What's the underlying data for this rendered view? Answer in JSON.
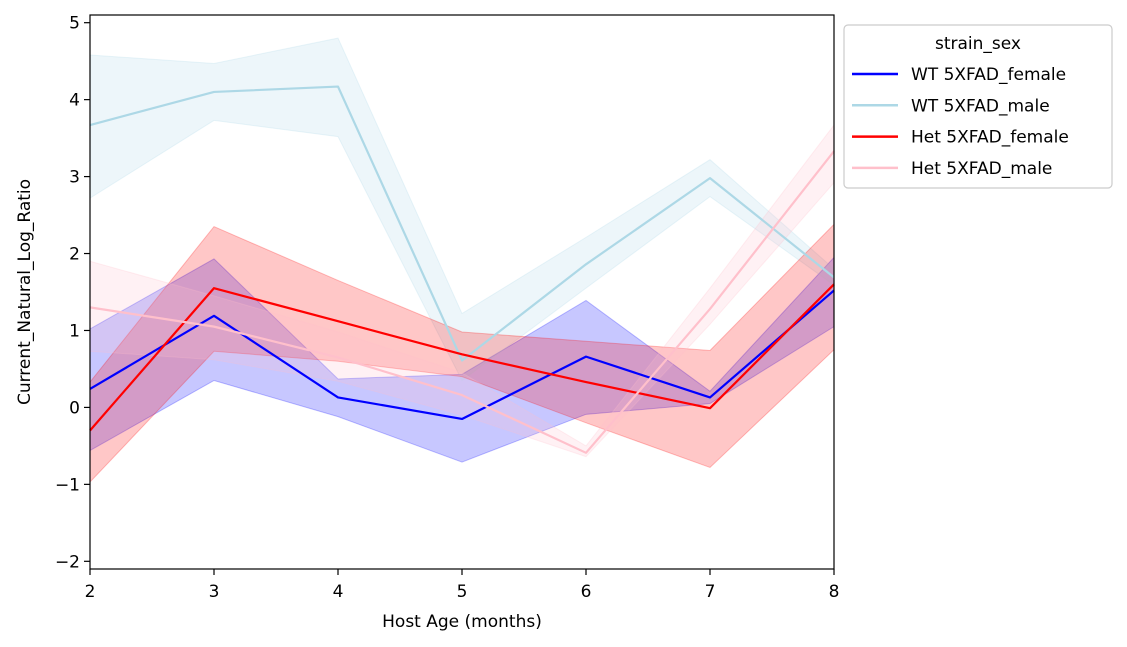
{
  "chart_data": {
    "type": "line",
    "xlabel": "Host Age (months)",
    "ylabel": "Current_Natural_Log_Ratio",
    "xlim": [
      2,
      8
    ],
    "ylim": [
      -2.1,
      5.1
    ],
    "xticks": [
      2,
      3,
      4,
      5,
      6,
      7,
      8
    ],
    "yticks": [
      -2,
      -1,
      0,
      1,
      2,
      3,
      4,
      5
    ],
    "grid": false,
    "legend": {
      "title": "strain_sex",
      "placement": "outside-top-right"
    },
    "series": [
      {
        "name": "WT 5XFAD_female",
        "color": "#0000ff",
        "x": [
          2,
          3,
          4,
          5,
          6,
          7,
          8
        ],
        "y": [
          0.24,
          1.19,
          0.13,
          -0.15,
          0.66,
          0.13,
          1.52
        ],
        "lower": [
          -0.56,
          0.35,
          -0.12,
          -0.71,
          -0.09,
          0.05,
          1.05
        ],
        "upper": [
          1.02,
          1.93,
          0.37,
          0.43,
          1.39,
          0.21,
          1.95
        ]
      },
      {
        "name": "WT 5XFAD_male",
        "color": "#add8e6",
        "x": [
          2,
          3,
          4,
          5,
          6,
          7,
          8
        ],
        "y": [
          3.67,
          4.1,
          4.17,
          0.61,
          1.86,
          2.98,
          1.69
        ],
        "lower": [
          2.72,
          3.73,
          3.52,
          0.35,
          1.55,
          2.74,
          1.59
        ],
        "upper": [
          4.58,
          4.47,
          4.8,
          1.22,
          2.21,
          3.22,
          1.8
        ]
      },
      {
        "name": "Het 5XFAD_female",
        "color": "#ff0000",
        "x": [
          2,
          3,
          4,
          5,
          6,
          7,
          8
        ],
        "y": [
          -0.3,
          1.55,
          1.12,
          0.69,
          0.33,
          -0.01,
          1.6
        ],
        "lower": [
          -0.97,
          0.73,
          0.6,
          0.4,
          -0.2,
          -0.78,
          0.75
        ],
        "upper": [
          0.33,
          2.35,
          1.65,
          0.98,
          0.86,
          0.74,
          2.38
        ]
      },
      {
        "name": "Het 5XFAD_male",
        "color": "#ffc0cb",
        "x": [
          2,
          3,
          4,
          5,
          6,
          7,
          8
        ],
        "y": [
          1.3,
          1.05,
          0.65,
          0.16,
          -0.59,
          1.28,
          3.33
        ],
        "lower": [
          0.73,
          0.62,
          0.34,
          -0.1,
          -0.64,
          1.08,
          2.92
        ],
        "upper": [
          1.9,
          1.45,
          0.98,
          0.45,
          -0.5,
          1.55,
          3.67
        ]
      }
    ]
  }
}
